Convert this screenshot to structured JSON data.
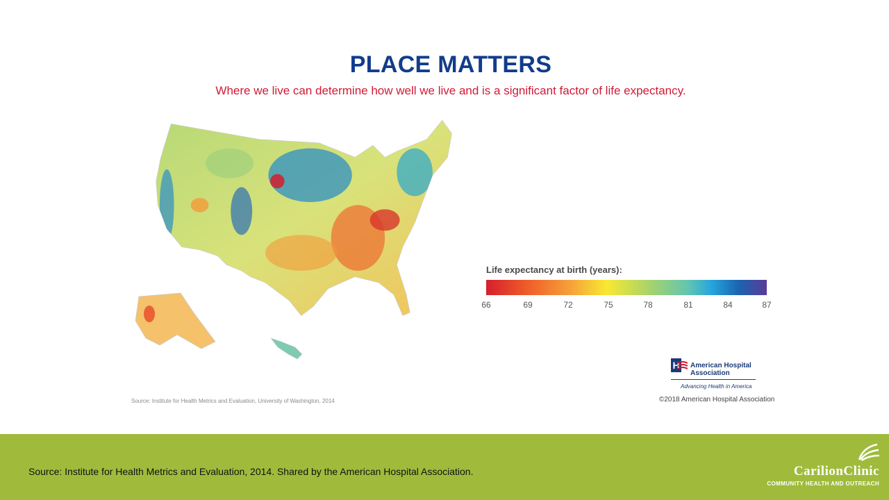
{
  "header": {
    "title": "PLACE MATTERS",
    "subtitle": "Where we live can determine how well we live and is a significant factor of life expectancy."
  },
  "map": {
    "subject": "Life expectancy at birth by U.S. county",
    "region": "United States",
    "colors": {
      "low": "#d41f2d",
      "mid": "#f7e932",
      "high": "#1a64b0",
      "max": "#5b3a97"
    }
  },
  "legend": {
    "title": "Life expectancy at birth (years):",
    "ticks": [
      "66",
      "69",
      "72",
      "75",
      "78",
      "81",
      "84",
      "87"
    ]
  },
  "source_small": "Source: Institute for Health Metrics and Evaluation, University of Washington, 2014",
  "aha": {
    "name_line1": "American Hospital",
    "name_line2": "Association",
    "tagline": "Advancing Health in America",
    "copyright": "©2018 American Hospital Association"
  },
  "footer": {
    "source": "Source: Institute for Health Metrics and Evaluation, 2014. Shared by the American Hospital Association.",
    "brand_name": "CarilionClinic",
    "brand_sub": "COMMUNITY HEALTH AND OUTREACH",
    "color": "#a0bb3c"
  }
}
